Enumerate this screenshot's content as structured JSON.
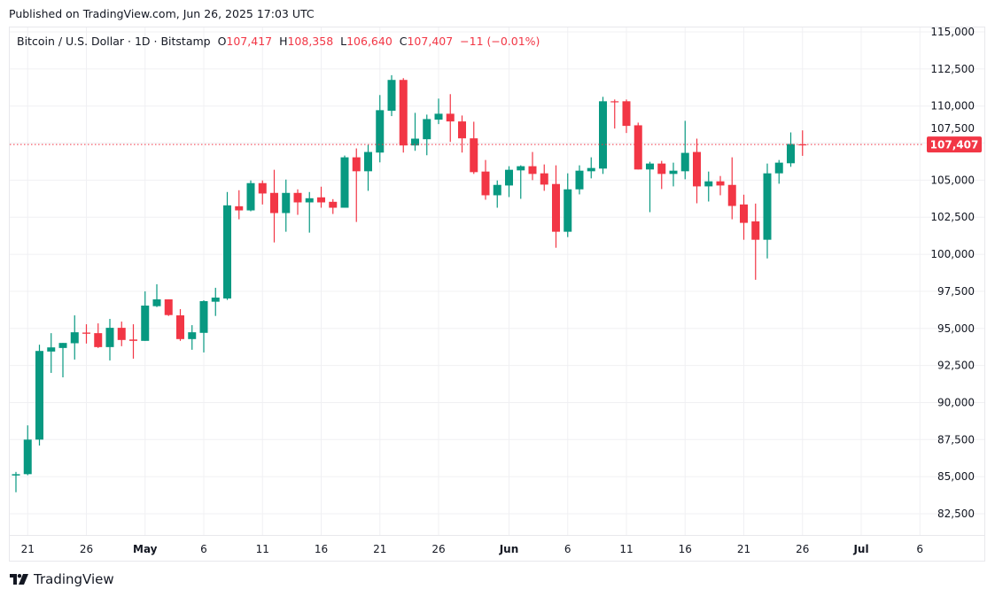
{
  "published": "Published on TradingView.com, Jun 26, 2025 17:03 UTC",
  "legend": {
    "symbol": "Bitcoin / U.S. Dollar · 1D · Bitstamp",
    "o_label": "O",
    "o_value": "107,417",
    "h_label": "H",
    "h_value": "108,358",
    "l_label": "L",
    "l_value": "106,640",
    "c_label": "C",
    "c_value": "107,407",
    "change": "−11 (−0.01%)"
  },
  "footer": {
    "brand": "TradingView"
  },
  "colors": {
    "up": "#089981",
    "down": "#F23645",
    "grid": "#f0f0f3",
    "last_price": "#F23645"
  },
  "chart_data": {
    "type": "candlestick",
    "grid": true,
    "ylim": [
      81500,
      115800
    ],
    "y_ticks": [
      82500,
      85000,
      87500,
      90000,
      92500,
      95000,
      97500,
      100000,
      102500,
      105000,
      107500,
      110000,
      112500,
      115000
    ],
    "y_tick_labels": [
      "82,500",
      "85,000",
      "87,500",
      "90,000",
      "92,500",
      "95,000",
      "97,500",
      "100,000",
      "102,500",
      "105,000",
      "107,500",
      "110,000",
      "112,500",
      "115,000"
    ],
    "x_ticks": [
      {
        "date": "Apr 21",
        "label": "21"
      },
      {
        "date": "Apr 26",
        "label": "26"
      },
      {
        "date": "May 1",
        "label": "May",
        "bold": true
      },
      {
        "date": "May 6",
        "label": "6"
      },
      {
        "date": "May 11",
        "label": "11"
      },
      {
        "date": "May 16",
        "label": "16"
      },
      {
        "date": "May 21",
        "label": "21"
      },
      {
        "date": "May 26",
        "label": "26"
      },
      {
        "date": "Jun 1",
        "label": "Jun",
        "bold": true
      },
      {
        "date": "Jun 6",
        "label": "6"
      },
      {
        "date": "Jun 11",
        "label": "11"
      },
      {
        "date": "Jun 16",
        "label": "16"
      },
      {
        "date": "Jun 21",
        "label": "21"
      },
      {
        "date": "Jun 26",
        "label": "26"
      },
      {
        "date": "Jul 1",
        "label": "Jul",
        "bold": true
      },
      {
        "date": "Jul 6",
        "label": "6"
      }
    ],
    "last_price": 107407,
    "last_price_label": "107,407",
    "candles": [
      {
        "d": "Apr 20",
        "o": 85080,
        "h": 85320,
        "l": 83950,
        "c": 85170
      },
      {
        "d": "Apr 21",
        "o": 85170,
        "h": 88460,
        "l": 85100,
        "c": 87500
      },
      {
        "d": "Apr 22",
        "o": 87500,
        "h": 93900,
        "l": 87100,
        "c": 93480
      },
      {
        "d": "Apr 23",
        "o": 93440,
        "h": 94680,
        "l": 92000,
        "c": 93720
      },
      {
        "d": "Apr 24",
        "o": 93680,
        "h": 94020,
        "l": 91700,
        "c": 94020
      },
      {
        "d": "Apr 25",
        "o": 94000,
        "h": 95880,
        "l": 92900,
        "c": 94740
      },
      {
        "d": "Apr 26",
        "o": 94720,
        "h": 95280,
        "l": 93980,
        "c": 94640
      },
      {
        "d": "Apr 27",
        "o": 94680,
        "h": 95340,
        "l": 93680,
        "c": 93740
      },
      {
        "d": "Apr 28",
        "o": 93740,
        "h": 95640,
        "l": 92840,
        "c": 95040
      },
      {
        "d": "Apr 29",
        "o": 95040,
        "h": 95460,
        "l": 93800,
        "c": 94220
      },
      {
        "d": "Apr 30",
        "o": 94250,
        "h": 95280,
        "l": 92960,
        "c": 94160
      },
      {
        "d": "May 1",
        "o": 94160,
        "h": 97500,
        "l": 94160,
        "c": 96540
      },
      {
        "d": "May 2",
        "o": 96500,
        "h": 97980,
        "l": 96440,
        "c": 96960
      },
      {
        "d": "May 3",
        "o": 96960,
        "h": 96960,
        "l": 95840,
        "c": 95900
      },
      {
        "d": "May 4",
        "o": 95880,
        "h": 96300,
        "l": 94160,
        "c": 94280
      },
      {
        "d": "May 5",
        "o": 94280,
        "h": 95220,
        "l": 93560,
        "c": 94740
      },
      {
        "d": "May 6",
        "o": 94700,
        "h": 96900,
        "l": 93380,
        "c": 96840
      },
      {
        "d": "May 7",
        "o": 96800,
        "h": 97740,
        "l": 95840,
        "c": 97080
      },
      {
        "d": "May 8",
        "o": 97020,
        "h": 104200,
        "l": 96920,
        "c": 103300
      },
      {
        "d": "May 9",
        "o": 103240,
        "h": 104320,
        "l": 102360,
        "c": 102960
      },
      {
        "d": "May 10",
        "o": 102960,
        "h": 104980,
        "l": 102900,
        "c": 104800
      },
      {
        "d": "May 11",
        "o": 104800,
        "h": 104980,
        "l": 103360,
        "c": 104100
      },
      {
        "d": "May 12",
        "o": 104140,
        "h": 105700,
        "l": 100800,
        "c": 102780
      },
      {
        "d": "May 13",
        "o": 102780,
        "h": 105040,
        "l": 101520,
        "c": 104140
      },
      {
        "d": "May 14",
        "o": 104140,
        "h": 104380,
        "l": 102660,
        "c": 103500
      },
      {
        "d": "May 15",
        "o": 103500,
        "h": 104200,
        "l": 101460,
        "c": 103780
      },
      {
        "d": "May 16",
        "o": 103840,
        "h": 104560,
        "l": 103140,
        "c": 103500
      },
      {
        "d": "May 17",
        "o": 103540,
        "h": 103720,
        "l": 102720,
        "c": 103140
      },
      {
        "d": "May 18",
        "o": 103140,
        "h": 106660,
        "l": 103140,
        "c": 106540
      },
      {
        "d": "May 19",
        "o": 106540,
        "h": 107140,
        "l": 102180,
        "c": 105600
      },
      {
        "d": "May 20",
        "o": 105600,
        "h": 107380,
        "l": 104280,
        "c": 106900
      },
      {
        "d": "May 21",
        "o": 106860,
        "h": 110740,
        "l": 106200,
        "c": 109720
      },
      {
        "d": "May 22",
        "o": 109680,
        "h": 112080,
        "l": 109320,
        "c": 111760
      },
      {
        "d": "May 23",
        "o": 111760,
        "h": 111880,
        "l": 106860,
        "c": 107340
      },
      {
        "d": "May 24",
        "o": 107340,
        "h": 109540,
        "l": 106980,
        "c": 107800
      },
      {
        "d": "May 25",
        "o": 107760,
        "h": 109420,
        "l": 106680,
        "c": 109120
      },
      {
        "d": "May 26",
        "o": 109080,
        "h": 110500,
        "l": 108780,
        "c": 109480
      },
      {
        "d": "May 27",
        "o": 109480,
        "h": 110800,
        "l": 107580,
        "c": 108960
      },
      {
        "d": "May 28",
        "o": 108960,
        "h": 109360,
        "l": 106860,
        "c": 107820
      },
      {
        "d": "May 29",
        "o": 107820,
        "h": 108940,
        "l": 105420,
        "c": 105540
      },
      {
        "d": "May 30",
        "o": 105580,
        "h": 106360,
        "l": 103680,
        "c": 103980
      },
      {
        "d": "May 31",
        "o": 103980,
        "h": 104980,
        "l": 103140,
        "c": 104680
      },
      {
        "d": "Jun 1",
        "o": 104640,
        "h": 105940,
        "l": 103860,
        "c": 105700
      },
      {
        "d": "Jun 2",
        "o": 105660,
        "h": 106000,
        "l": 103740,
        "c": 105940
      },
      {
        "d": "Jun 3",
        "o": 105940,
        "h": 106900,
        "l": 105000,
        "c": 105420
      },
      {
        "d": "Jun 4",
        "o": 105460,
        "h": 106060,
        "l": 104280,
        "c": 104700
      },
      {
        "d": "Jun 5",
        "o": 104740,
        "h": 106000,
        "l": 100440,
        "c": 101520
      },
      {
        "d": "Jun 6",
        "o": 101520,
        "h": 105460,
        "l": 101160,
        "c": 104380
      },
      {
        "d": "Jun 7",
        "o": 104380,
        "h": 106000,
        "l": 104040,
        "c": 105640
      },
      {
        "d": "Jun 8",
        "o": 105600,
        "h": 106540,
        "l": 105120,
        "c": 105820
      },
      {
        "d": "Jun 9",
        "o": 105780,
        "h": 110620,
        "l": 105420,
        "c": 110320
      },
      {
        "d": "Jun 10",
        "o": 110320,
        "h": 110440,
        "l": 108480,
        "c": 110280
      },
      {
        "d": "Jun 11",
        "o": 110320,
        "h": 110440,
        "l": 108180,
        "c": 108660
      },
      {
        "d": "Jun 12",
        "o": 108700,
        "h": 108880,
        "l": 105720,
        "c": 105720
      },
      {
        "d": "Jun 13",
        "o": 105720,
        "h": 106240,
        "l": 102840,
        "c": 106120
      },
      {
        "d": "Jun 14",
        "o": 106120,
        "h": 106300,
        "l": 104400,
        "c": 105420
      },
      {
        "d": "Jun 15",
        "o": 105420,
        "h": 106180,
        "l": 104580,
        "c": 105640
      },
      {
        "d": "Jun 16",
        "o": 105600,
        "h": 109000,
        "l": 105060,
        "c": 106840
      },
      {
        "d": "Jun 17",
        "o": 106900,
        "h": 107800,
        "l": 103440,
        "c": 104580
      },
      {
        "d": "Jun 18",
        "o": 104580,
        "h": 105580,
        "l": 103560,
        "c": 104920
      },
      {
        "d": "Jun 19",
        "o": 104920,
        "h": 105280,
        "l": 103980,
        "c": 104640
      },
      {
        "d": "Jun 20",
        "o": 104680,
        "h": 106540,
        "l": 102360,
        "c": 103260
      },
      {
        "d": "Jun 21",
        "o": 103360,
        "h": 104020,
        "l": 100980,
        "c": 102120
      },
      {
        "d": "Jun 22",
        "o": 102220,
        "h": 103420,
        "l": 98280,
        "c": 100980
      },
      {
        "d": "Jun 23",
        "o": 100980,
        "h": 106120,
        "l": 99720,
        "c": 105460
      },
      {
        "d": "Jun 24",
        "o": 105460,
        "h": 106360,
        "l": 104760,
        "c": 106180
      },
      {
        "d": "Jun 25",
        "o": 106140,
        "h": 108220,
        "l": 105900,
        "c": 107440
      },
      {
        "d": "Jun 26",
        "o": 107417,
        "h": 108358,
        "l": 106640,
        "c": 107407
      }
    ]
  }
}
